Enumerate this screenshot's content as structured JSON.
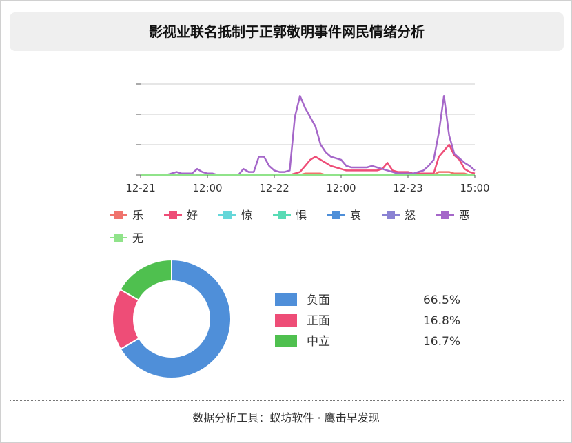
{
  "page": {
    "title": "影视业联名抵制于正郭敬明事件网民情绪分析",
    "footer": "数据分析工具：蚁坊软件 · 鹰击早发现"
  },
  "chart_data": [
    {
      "type": "line",
      "x_ticks": [
        "12-21",
        "12:00",
        "12-22",
        "12:00",
        "12-23",
        "15:00"
      ],
      "y_ticks": [
        "",
        "",
        "",
        ""
      ],
      "grid": true,
      "legend_position": "bottom",
      "series": [
        {
          "name": "乐",
          "color": "#f0736d",
          "values": [
            0,
            0,
            0,
            0,
            0,
            0,
            0,
            0,
            0,
            0,
            0,
            0,
            0,
            0,
            0,
            0,
            0,
            0,
            0,
            0,
            0,
            0,
            0,
            0,
            0,
            0,
            0,
            0,
            0,
            0,
            0,
            0,
            1,
            1,
            1,
            1,
            0,
            0,
            0,
            0,
            0,
            0,
            0,
            0,
            0,
            0,
            0,
            0,
            0,
            0,
            0,
            0,
            0,
            0,
            0,
            0,
            0,
            0,
            2,
            2,
            2,
            1,
            1,
            1,
            0,
            0
          ]
        },
        {
          "name": "好",
          "color": "#ee4d77",
          "values": [
            0,
            0,
            0,
            0,
            0,
            0,
            0,
            0,
            0,
            0,
            0,
            0,
            0,
            0,
            0,
            0,
            0,
            0,
            0,
            0,
            0,
            0,
            0,
            0,
            0,
            0,
            0,
            0,
            0,
            0,
            1,
            2,
            6,
            10,
            12,
            10,
            8,
            6,
            5,
            4,
            3,
            3,
            3,
            3,
            3,
            3,
            3,
            4,
            8,
            3,
            2,
            2,
            2,
            1,
            1,
            1,
            1,
            1,
            12,
            16,
            20,
            13,
            10,
            4,
            2,
            1
          ]
        },
        {
          "name": "惊",
          "color": "#65d7d9",
          "values": [
            0,
            0,
            0,
            0,
            0,
            0,
            0,
            0,
            0,
            0,
            0,
            0,
            0,
            0,
            0,
            0,
            0,
            0,
            0,
            0,
            0,
            0,
            0,
            0,
            0,
            0,
            0,
            0,
            0,
            0,
            0,
            0,
            0,
            0,
            0,
            0,
            0,
            0,
            0,
            0,
            0,
            0,
            0,
            0,
            0,
            0,
            0,
            0,
            0,
            0,
            0,
            0,
            0,
            0,
            0,
            0,
            0,
            0,
            0,
            0,
            0,
            0,
            0,
            0,
            0,
            0
          ]
        },
        {
          "name": "惧",
          "color": "#59dbb5",
          "values": [
            0,
            0,
            0,
            0,
            0,
            0,
            0,
            0,
            0,
            0,
            0,
            0,
            0,
            0,
            0,
            0,
            0,
            0,
            0,
            0,
            0,
            0,
            0,
            0,
            0,
            0,
            0,
            0,
            0,
            0,
            0,
            0,
            0,
            0,
            0,
            0,
            0,
            0,
            0,
            0,
            0,
            0,
            0,
            0,
            0,
            0,
            0,
            0,
            0,
            0,
            0,
            0,
            0,
            0,
            0,
            0,
            0,
            0,
            0,
            0,
            0,
            0,
            0,
            0,
            0,
            0
          ]
        },
        {
          "name": "哀",
          "color": "#4e8fd9",
          "values": [
            0,
            0,
            0,
            0,
            0,
            0,
            0,
            0,
            0,
            0,
            0,
            0,
            0,
            0,
            0,
            0,
            0,
            0,
            0,
            0,
            0,
            0,
            0,
            0,
            0,
            0,
            0,
            0,
            0,
            0,
            0,
            0,
            0,
            0,
            0,
            0,
            0,
            0,
            0,
            0,
            0,
            0,
            0,
            0,
            0,
            0,
            0,
            0,
            0,
            0,
            0,
            0,
            0,
            0,
            0,
            0,
            0,
            0,
            0,
            0,
            0,
            0,
            0,
            0,
            0,
            0
          ]
        },
        {
          "name": "怒",
          "color": "#8a82d3",
          "values": [
            0,
            0,
            0,
            0,
            0,
            0,
            0,
            0,
            0,
            0,
            0,
            0,
            0,
            0,
            0,
            0,
            0,
            0,
            0,
            0,
            0,
            0,
            0,
            0,
            0,
            0,
            0,
            0,
            0,
            0,
            0,
            0,
            0,
            0,
            0,
            0,
            0,
            0,
            0,
            0,
            0,
            0,
            0,
            0,
            0,
            0,
            0,
            0,
            0,
            0,
            0,
            0,
            0,
            0,
            0,
            0,
            0,
            0,
            0,
            0,
            0,
            0,
            0,
            0,
            0,
            0
          ]
        },
        {
          "name": "恶",
          "color": "#a567c9",
          "values": [
            0,
            0,
            0,
            0,
            0,
            0,
            1,
            2,
            1,
            1,
            1,
            4,
            2,
            1,
            1,
            0,
            0,
            0,
            0,
            0,
            4,
            2,
            2,
            12,
            12,
            6,
            3,
            2,
            2,
            3,
            38,
            52,
            44,
            38,
            32,
            20,
            15,
            12,
            11,
            10,
            6,
            5,
            5,
            5,
            5,
            6,
            5,
            4,
            3,
            2,
            1,
            1,
            1,
            1,
            2,
            3,
            6,
            10,
            28,
            52,
            26,
            14,
            11,
            8,
            6,
            3
          ]
        },
        {
          "name": "无",
          "color": "#90e38a",
          "values": [
            0,
            0,
            0,
            0,
            0,
            0,
            0,
            0,
            0,
            0,
            0,
            0,
            0,
            0,
            0,
            0,
            0,
            0,
            0,
            0,
            0,
            0,
            0,
            0,
            0,
            0,
            0,
            0,
            0,
            0,
            0,
            0,
            0,
            0,
            0,
            0,
            0,
            0,
            0,
            0,
            0,
            0,
            0,
            0,
            0,
            0,
            0,
            0,
            0,
            0,
            0,
            0,
            0,
            0,
            0,
            0,
            0,
            0,
            0,
            0,
            0,
            0,
            0,
            0,
            0,
            0
          ]
        }
      ]
    },
    {
      "type": "pie",
      "labels": [
        "负面",
        "正面",
        "中立"
      ],
      "values": [
        66.5,
        16.8,
        16.7
      ],
      "value_labels": [
        "66.5%",
        "16.8%",
        "16.7%"
      ],
      "colors": [
        "#4f8fd9",
        "#ee4d77",
        "#4fc04f"
      ]
    }
  ]
}
